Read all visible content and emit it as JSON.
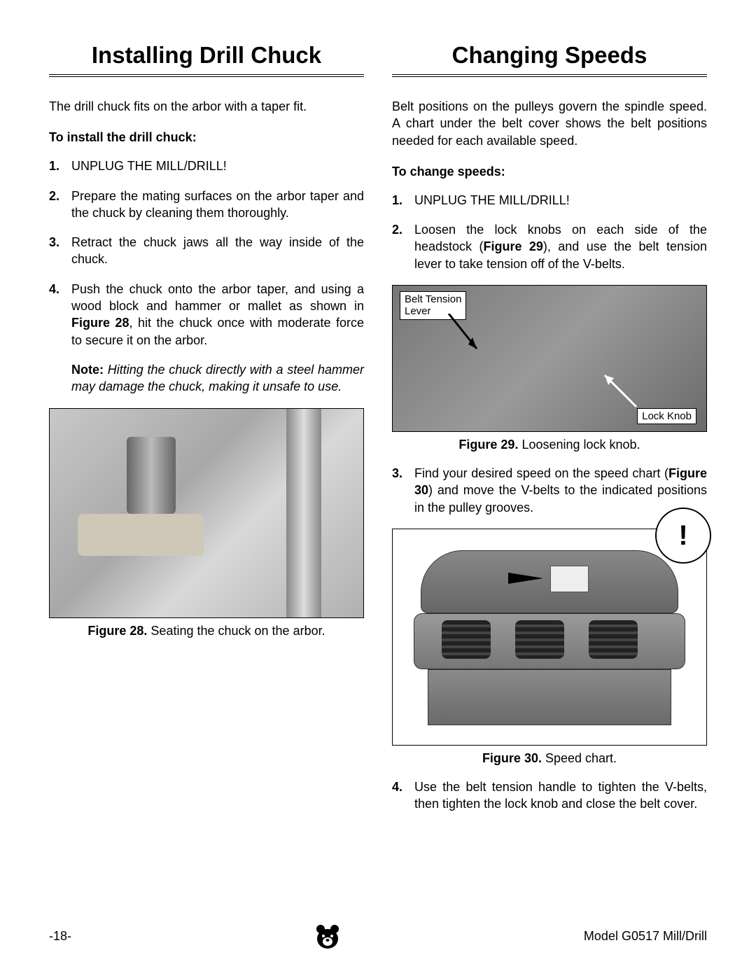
{
  "left": {
    "title": "Installing Drill Chuck",
    "intro": "The drill chuck fits on the arbor with a taper fit.",
    "sub_head": "To install the drill chuck:",
    "steps": [
      "UNPLUG THE MILL/DRILL!",
      "Prepare the mating surfaces on the arbor taper and the chuck by cleaning them thoroughly.",
      "Retract the chuck jaws all the way inside of the chuck.",
      "Push the chuck onto the arbor taper, and using a wood block and hammer or mallet as shown in <b>Figure 28</b>, hit the chuck once with moderate force to secure it on the arbor."
    ],
    "note_label": "Note:",
    "note_body": "Hitting the chuck directly with a steel hammer may damage the chuck, making it unsafe to use.",
    "fig28_caption_bold": "Figure 28.",
    "fig28_caption_rest": " Seating the chuck on the arbor."
  },
  "right": {
    "title": "Changing Speeds",
    "intro": "Belt positions on the pulleys govern the spindle speed. A chart under the belt cover shows the belt positions needed for each available speed.",
    "sub_head": "To change speeds:",
    "step1": "UNPLUG THE MILL/DRILL!",
    "step2": "Loosen the lock knobs on each side of the headstock (<b>Figure 29</b>), and use the belt tension lever to take tension off of the V-belts.",
    "callout_belt": "Belt Tension\nLever",
    "callout_lock": "Lock Knob",
    "fig29_caption_bold": "Figure 29.",
    "fig29_caption_rest": " Loosening lock knob.",
    "step3": "Find your desired speed on the speed chart (<b>Figure 30</b>) and move the V-belts to the indicated positions in the pulley grooves.",
    "fig30_caption_bold": "Figure 30.",
    "fig30_caption_rest": " Speed chart.",
    "step4": "Use the belt tension handle to tighten the V-belts, then tighten the lock knob and close the belt cover."
  },
  "footer": {
    "page": "-18-",
    "model": "Model G0517 Mill/Drill"
  }
}
